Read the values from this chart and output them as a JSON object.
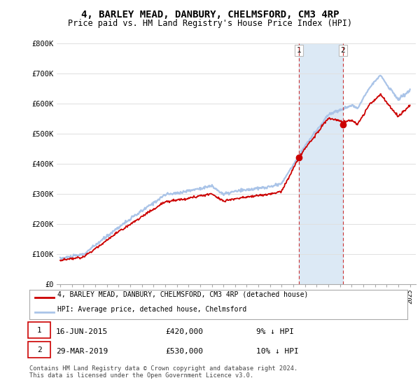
{
  "title": "4, BARLEY MEAD, DANBURY, CHELMSFORD, CM3 4RP",
  "subtitle": "Price paid vs. HM Land Registry's House Price Index (HPI)",
  "ylabel_ticks": [
    "£0",
    "£100K",
    "£200K",
    "£300K",
    "£400K",
    "£500K",
    "£600K",
    "£700K",
    "£800K"
  ],
  "ytick_values": [
    0,
    100000,
    200000,
    300000,
    400000,
    500000,
    600000,
    700000,
    800000
  ],
  "ylim": [
    0,
    800000
  ],
  "purchase1_year": 2015.46,
  "purchase1_price": 420000,
  "purchase2_year": 2019.24,
  "purchase2_price": 530000,
  "hpi_color": "#aac4e8",
  "price_color": "#cc0000",
  "shade_color": "#dce9f5",
  "legend1": "4, BARLEY MEAD, DANBURY, CHELMSFORD, CM3 4RP (detached house)",
  "legend2": "HPI: Average price, detached house, Chelmsford",
  "footnote1": "Contains HM Land Registry data © Crown copyright and database right 2024.",
  "footnote2": "This data is licensed under the Open Government Licence v3.0.",
  "bg_color": "#ffffff",
  "grid_color": "#e0e0e0"
}
